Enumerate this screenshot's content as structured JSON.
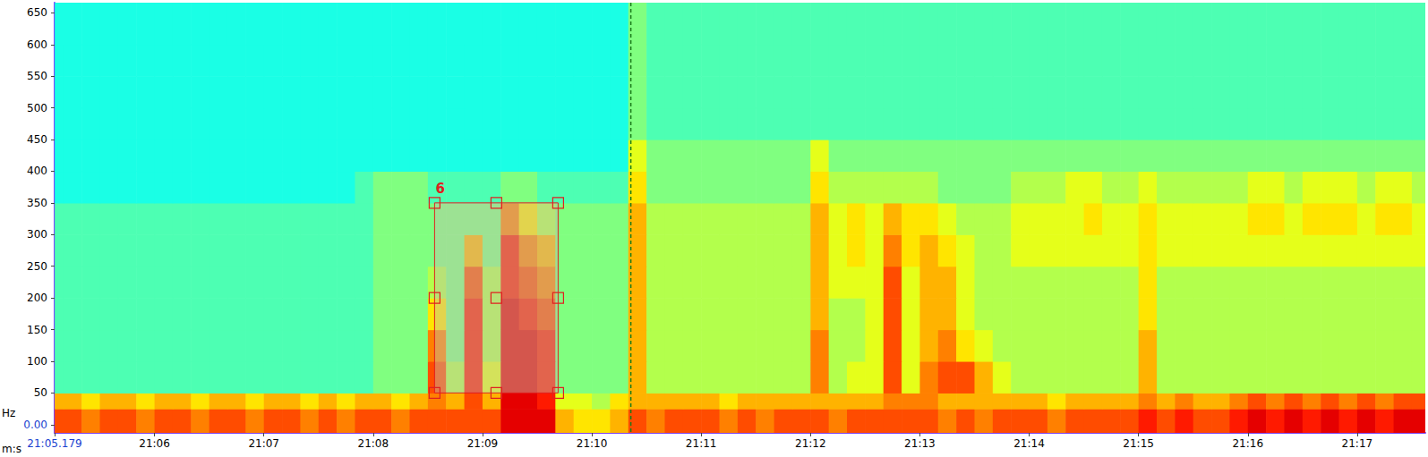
{
  "chart_data": {
    "type": "heatmap",
    "x_label": "m:s",
    "y_label": "Hz",
    "xlim": [
      305.179,
      1057.4
    ],
    "xticks": [
      {
        "value": 305.179,
        "label": "21:05.179"
      },
      {
        "value": 360,
        "label": "21:06"
      },
      {
        "value": 420,
        "label": "21:07"
      },
      {
        "value": 480,
        "label": "21:08"
      },
      {
        "value": 540,
        "label": "21:09"
      },
      {
        "value": 600,
        "label": "21:10"
      },
      {
        "value": 660,
        "label": "21:11"
      },
      {
        "value": 720,
        "label": "21:12"
      },
      {
        "value": 780,
        "label": "21:13"
      },
      {
        "value": 840,
        "label": "21:14"
      },
      {
        "value": 900,
        "label": "21:15"
      },
      {
        "value": 960,
        "label": "21:16"
      },
      {
        "value": 1020,
        "label": "21:17"
      }
    ],
    "ylim": [
      -13,
      666
    ],
    "yticks": [
      {
        "value": 0,
        "label": "0.00"
      },
      50,
      100,
      150,
      200,
      250,
      300,
      350,
      400,
      450,
      500,
      550,
      600,
      650
    ],
    "grid": false,
    "zlim": [
      0,
      10
    ],
    "x_edges": [
      305.179,
      310,
      320,
      330,
      340,
      350,
      360,
      370,
      380,
      390,
      400,
      410,
      420,
      430,
      440,
      450,
      460,
      470,
      480,
      490,
      500,
      510,
      520,
      530,
      540,
      550,
      560,
      570,
      580,
      590,
      600,
      610,
      620,
      630,
      640,
      650,
      660,
      670,
      680,
      690,
      700,
      710,
      720,
      730,
      740,
      750,
      760,
      770,
      780,
      790,
      800,
      810,
      820,
      830,
      840,
      850,
      860,
      870,
      880,
      890,
      900,
      910,
      920,
      930,
      940,
      950,
      960,
      970,
      980,
      990,
      1000,
      1010,
      1020,
      1030,
      1040,
      1050,
      1057.4
    ],
    "y_edges": [
      -13,
      25,
      50,
      100,
      150,
      200,
      250,
      300,
      350,
      400,
      450,
      500,
      550,
      600,
      666
    ],
    "values": [
      [
        8,
        8,
        7.5,
        8,
        8,
        7.5,
        8,
        8,
        7.5,
        8,
        8,
        7.5,
        8,
        8,
        7.5,
        8,
        7.5,
        8,
        8,
        7.5,
        8,
        8,
        8,
        8,
        8,
        9,
        9,
        9,
        7,
        6.5,
        6.5,
        7,
        8,
        7.5,
        8,
        8,
        8,
        7.5,
        8,
        7.5,
        8,
        8,
        8,
        7.5,
        8,
        8,
        8,
        8,
        8,
        7.5,
        8,
        7.5,
        8,
        8,
        8,
        7.5,
        8,
        8,
        8,
        8,
        8.5,
        8,
        8.5,
        8,
        8,
        8.5,
        9,
        8.5,
        9,
        8.5,
        9,
        8.5,
        9,
        8.5,
        9,
        9
      ],
      [
        7,
        7,
        6.5,
        7,
        7,
        6.5,
        7,
        7,
        6.5,
        7,
        7,
        6.5,
        7,
        7,
        6.5,
        7,
        6.5,
        7,
        7,
        6.5,
        7,
        7.5,
        7,
        8,
        7,
        9,
        9,
        8.5,
        6,
        6,
        5.5,
        6.5,
        7,
        7,
        7,
        7,
        7,
        6.5,
        7,
        7,
        7,
        7,
        7,
        7,
        7,
        7,
        7.5,
        7.5,
        7.5,
        7,
        7,
        7,
        7,
        7,
        7,
        6.5,
        7,
        7,
        7,
        7,
        7.5,
        7,
        7.5,
        7,
        7,
        7.5,
        8,
        7.5,
        8,
        7.5,
        8,
        7.5,
        8,
        7.5,
        8,
        8
      ],
      [
        4.5,
        4.5,
        4.5,
        4.5,
        4.5,
        4.5,
        4.5,
        4.5,
        4.5,
        4.5,
        4.5,
        4.5,
        4.5,
        4.5,
        4.5,
        4.5,
        4.5,
        4.5,
        5,
        5,
        5,
        8,
        5.5,
        8.5,
        6,
        9,
        9,
        8.5,
        5,
        5,
        5,
        5,
        7,
        5.5,
        5.5,
        5.5,
        5.5,
        5.5,
        5.5,
        5.5,
        5.5,
        5.5,
        7.5,
        5.5,
        6,
        6,
        8,
        6,
        7.5,
        8,
        8,
        7,
        6,
        5.5,
        5.5,
        5.5,
        5.5,
        5.5,
        5.5,
        5.5,
        7,
        5.5,
        5.5,
        5.5,
        5.5,
        5.5,
        5.5,
        5.5,
        5.5,
        5.5,
        5.5,
        5.5,
        5.5,
        5.5,
        5.5,
        5.5
      ],
      [
        4.5,
        4.5,
        4.5,
        4.5,
        4.5,
        4.5,
        4.5,
        4.5,
        4.5,
        4.5,
        4.5,
        4.5,
        4.5,
        4.5,
        4.5,
        4.5,
        4.5,
        4.5,
        5,
        5,
        5,
        7.5,
        5,
        8.5,
        5.5,
        9,
        9,
        8.5,
        5,
        5,
        5,
        5,
        7,
        5.5,
        5.5,
        5.5,
        5.5,
        5.5,
        5.5,
        5.5,
        5.5,
        5.5,
        7.5,
        5.5,
        5.5,
        6,
        8,
        6,
        7,
        7.5,
        6.5,
        6,
        5.5,
        5.5,
        5.5,
        5.5,
        5.5,
        5.5,
        5.5,
        5.5,
        7,
        5.5,
        5.5,
        5.5,
        5.5,
        5.5,
        5.5,
        5.5,
        5.5,
        5.5,
        5.5,
        5.5,
        5.5,
        5.5,
        5.5,
        5.5
      ],
      [
        4.5,
        4.5,
        4.5,
        4.5,
        4.5,
        4.5,
        4.5,
        4.5,
        4.5,
        4.5,
        4.5,
        4.5,
        4.5,
        4.5,
        4.5,
        4.5,
        4.5,
        4.5,
        5,
        5,
        5,
        6.5,
        5,
        8.5,
        5.5,
        9,
        8.5,
        8,
        5,
        5,
        5,
        5,
        7,
        5.5,
        5.5,
        5.5,
        5.5,
        5.5,
        5.5,
        5.5,
        5.5,
        5.5,
        7,
        5.5,
        5.5,
        6,
        8,
        6,
        7,
        7,
        6,
        5.5,
        5.5,
        5.5,
        5.5,
        5.5,
        5.5,
        5.5,
        5.5,
        5.5,
        6.5,
        5.5,
        5.5,
        5.5,
        5.5,
        5.5,
        5.5,
        5.5,
        5.5,
        5.5,
        5.5,
        5.5,
        5.5,
        5.5,
        5.5,
        5.5
      ],
      [
        4.5,
        4.5,
        4.5,
        4.5,
        4.5,
        4.5,
        4.5,
        4.5,
        4.5,
        4.5,
        4.5,
        4.5,
        4.5,
        4.5,
        4.5,
        4.5,
        4.5,
        4.5,
        5,
        5,
        5,
        5.5,
        5,
        8,
        5.5,
        8.5,
        8,
        7.5,
        5,
        5,
        5,
        5,
        7,
        5.5,
        5.5,
        5.5,
        5.5,
        5.5,
        5.5,
        5.5,
        5.5,
        5.5,
        7,
        6,
        6,
        6,
        8,
        6,
        7,
        7,
        6,
        5.5,
        5.5,
        5.5,
        5.5,
        5.5,
        5.5,
        5.5,
        5.5,
        5.5,
        6.5,
        5.5,
        5.5,
        5.5,
        5.5,
        5.5,
        5.5,
        5.5,
        5.5,
        5.5,
        5.5,
        5.5,
        5.5,
        5.5,
        5.5,
        5.5
      ],
      [
        4.5,
        4.5,
        4.5,
        4.5,
        4.5,
        4.5,
        4.5,
        4.5,
        4.5,
        4.5,
        4.5,
        4.5,
        4.5,
        4.5,
        4.5,
        4.5,
        4.5,
        4.5,
        5,
        5,
        5,
        5,
        5,
        7,
        5,
        8.5,
        7.5,
        7,
        5,
        5,
        5,
        5,
        7,
        5.5,
        5.5,
        5.5,
        5.5,
        5.5,
        5.5,
        5.5,
        5.5,
        5.5,
        7,
        6,
        6.5,
        6,
        7.5,
        6.5,
        7,
        6.5,
        6,
        5.5,
        5.5,
        6,
        6,
        6,
        6,
        6,
        6,
        6,
        6.5,
        6,
        6,
        6,
        6,
        6,
        6,
        6,
        6,
        6,
        6,
        6,
        6,
        6,
        6,
        6
      ],
      [
        4.5,
        4.5,
        4.5,
        4.5,
        4.5,
        4.5,
        4.5,
        4.5,
        4.5,
        4.5,
        4.5,
        4.5,
        4.5,
        4.5,
        4.5,
        4.5,
        4.5,
        4.5,
        5,
        5,
        5,
        5,
        5,
        5,
        5,
        7.5,
        6.5,
        5.5,
        5,
        5,
        5,
        5,
        7,
        5.5,
        5.5,
        5.5,
        5.5,
        5.5,
        5.5,
        5.5,
        5.5,
        5.5,
        7,
        6,
        6.5,
        6,
        7,
        6.5,
        6.5,
        6,
        5.5,
        5.5,
        5.5,
        6,
        6,
        6,
        6,
        6.5,
        6,
        6,
        6.5,
        6,
        6,
        6,
        6,
        6,
        6.5,
        6.5,
        6,
        6.5,
        6.5,
        6.5,
        6,
        6.5,
        6.5,
        6
      ],
      [
        4,
        4,
        4,
        4,
        4,
        4,
        4,
        4,
        4,
        4,
        4,
        4,
        4,
        4,
        4,
        4,
        4,
        4.5,
        5,
        5,
        5,
        4.5,
        4.5,
        4.5,
        4.5,
        5,
        5,
        4.5,
        4.5,
        4.5,
        4.5,
        4.5,
        6.5,
        5,
        5,
        5,
        5,
        5,
        5,
        5,
        5,
        5,
        6.5,
        5.5,
        5.5,
        5.5,
        5.5,
        5.5,
        5.5,
        5,
        5,
        5,
        5,
        5.5,
        5.5,
        5.5,
        6,
        6,
        5.5,
        5.5,
        6,
        5.5,
        5.5,
        5.5,
        5.5,
        5.5,
        6,
        6,
        5.5,
        6,
        6,
        6,
        5.5,
        6,
        6,
        5.5
      ],
      [
        4,
        4,
        4,
        4,
        4,
        4,
        4,
        4,
        4,
        4,
        4,
        4,
        4,
        4,
        4,
        4,
        4,
        4,
        4,
        4,
        4,
        4,
        4,
        4,
        4,
        4,
        4,
        4,
        4,
        4,
        4,
        4,
        6,
        5,
        5,
        5,
        5,
        5,
        5,
        5,
        5,
        5,
        6,
        5,
        5,
        5,
        5,
        5,
        5,
        5,
        5,
        5,
        5,
        5,
        5,
        5,
        5,
        5,
        5,
        5,
        5,
        5,
        5,
        5,
        5,
        5,
        5,
        5,
        5,
        5,
        5,
        5,
        5,
        5,
        5,
        5
      ],
      [
        4,
        4,
        4,
        4,
        4,
        4,
        4,
        4,
        4,
        4,
        4,
        4,
        4,
        4,
        4,
        4,
        4,
        4,
        4,
        4,
        4,
        4,
        4,
        4,
        4,
        4,
        4,
        4,
        4,
        4,
        4,
        4,
        5,
        4.5,
        4.5,
        4.5,
        4.5,
        4.5,
        4.5,
        4.5,
        4.5,
        4.5,
        4.5,
        4.5,
        4.5,
        4.5,
        4.5,
        4.5,
        4.5,
        4.5,
        4.5,
        4.5,
        4.5,
        4.5,
        4.5,
        4.5,
        4.5,
        4.5,
        4.5,
        4.5,
        4.5,
        4.5,
        4.5,
        4.5,
        4.5,
        4.5,
        4.5,
        4.5,
        4.5,
        4.5,
        4.5,
        4.5,
        4.5,
        4.5,
        4.5,
        4.5
      ],
      [
        4,
        4,
        4,
        4,
        4,
        4,
        4,
        4,
        4,
        4,
        4,
        4,
        4,
        4,
        4,
        4,
        4,
        4,
        4,
        4,
        4,
        4,
        4,
        4,
        4,
        4,
        4,
        4,
        4,
        4,
        4,
        4,
        5,
        4.5,
        4.5,
        4.5,
        4.5,
        4.5,
        4.5,
        4.5,
        4.5,
        4.5,
        4.5,
        4.5,
        4.5,
        4.5,
        4.5,
        4.5,
        4.5,
        4.5,
        4.5,
        4.5,
        4.5,
        4.5,
        4.5,
        4.5,
        4.5,
        4.5,
        4.5,
        4.5,
        4.5,
        4.5,
        4.5,
        4.5,
        4.5,
        4.5,
        4.5,
        4.5,
        4.5,
        4.5,
        4.5,
        4.5,
        4.5,
        4.5,
        4.5,
        4.5
      ],
      [
        4,
        4,
        4,
        4,
        4,
        4,
        4,
        4,
        4,
        4,
        4,
        4,
        4,
        4,
        4,
        4,
        4,
        4,
        4,
        4,
        4,
        4,
        4,
        4,
        4,
        4,
        4,
        4,
        4,
        4,
        4,
        4,
        5,
        4.5,
        4.5,
        4.5,
        4.5,
        4.5,
        4.5,
        4.5,
        4.5,
        4.5,
        4.5,
        4.5,
        4.5,
        4.5,
        4.5,
        4.5,
        4.5,
        4.5,
        4.5,
        4.5,
        4.5,
        4.5,
        4.5,
        4.5,
        4.5,
        4.5,
        4.5,
        4.5,
        4.5,
        4.5,
        4.5,
        4.5,
        4.5,
        4.5,
        4.5,
        4.5,
        4.5,
        4.5,
        4.5,
        4.5,
        4.5,
        4.5,
        4.5,
        4.5
      ],
      [
        4,
        4,
        4,
        4,
        4,
        4,
        4,
        4,
        4,
        4,
        4,
        4,
        4,
        4,
        4,
        4,
        4,
        4,
        4,
        4,
        4,
        4,
        4,
        4,
        4,
        4,
        4,
        4,
        4,
        4,
        4,
        4,
        5,
        4.5,
        4.5,
        4.5,
        4.5,
        4.5,
        4.5,
        4.5,
        4.5,
        4.5,
        4.5,
        4.5,
        4.5,
        4.5,
        4.5,
        4.5,
        4.5,
        4.5,
        4.5,
        4.5,
        4.5,
        4.5,
        4.5,
        4.5,
        4.5,
        4.5,
        4.5,
        4.5,
        4.5,
        4.5,
        4.5,
        4.5,
        4.5,
        4.5,
        4.5,
        4.5,
        4.5,
        4.5,
        4.5,
        4.5,
        4.5,
        4.5,
        4.5,
        4.5
      ]
    ],
    "annotations": [
      {
        "type": "box",
        "label": "6",
        "x": [
          513.7,
          581.5
        ],
        "y": [
          50,
          350
        ]
      },
      {
        "type": "vline",
        "x": 621.4
      }
    ]
  }
}
